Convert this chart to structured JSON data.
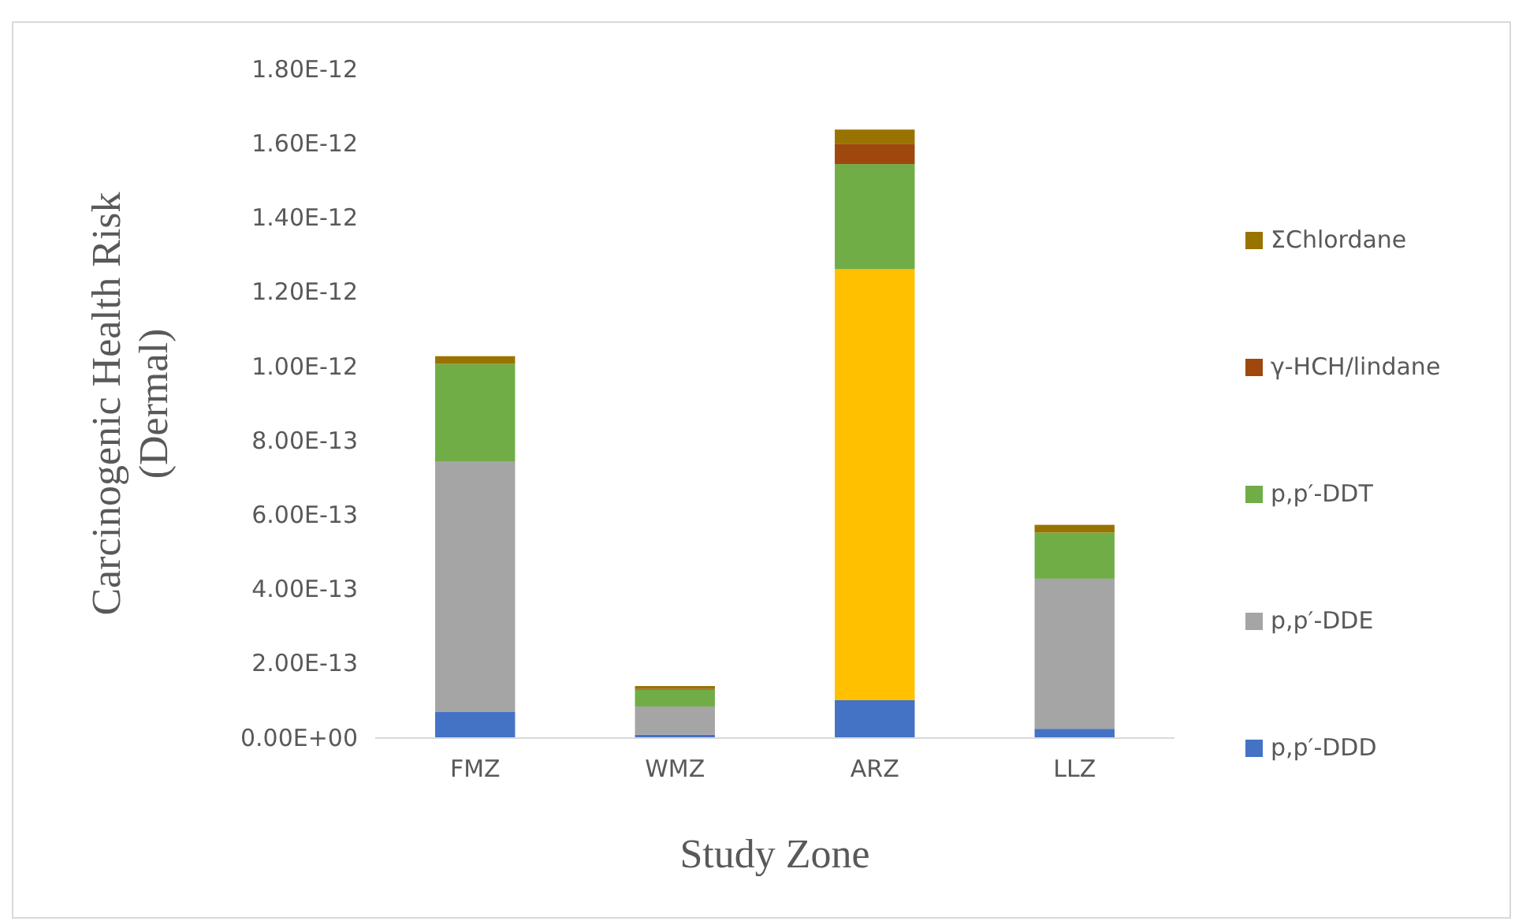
{
  "chart_data": {
    "type": "bar",
    "stacked": true,
    "xlabel": "Study Zone",
    "ylabel": "Carcinogenic Health Risk (Dermal)",
    "categories": [
      "FMZ",
      "WMZ",
      "ARZ",
      "LLZ"
    ],
    "series": [
      {
        "name": "p,p′-DDD",
        "color": "#4472c4",
        "values": [
          7e-14,
          9e-15,
          1.02e-13,
          2.5e-14
        ]
      },
      {
        "name": "p,p′-DDE",
        "color": "#a5a5a5",
        "values": [
          6.75e-13,
          7.6e-14,
          null,
          4.04e-13
        ]
      },
      {
        "color": "#ffc000",
        "values": [
          null,
          null,
          1.16e-12,
          null
        ]
      },
      {
        "name": "p,p′-DDT",
        "color": "#70ad47",
        "values": [
          2.62e-13,
          4.5e-14,
          2.83e-13,
          1.24e-13
        ]
      },
      {
        "name": "γ-HCH/lindane",
        "color": "#9e480e",
        "values": [
          null,
          3e-15,
          5.5e-14,
          null
        ]
      },
      {
        "name": "ΣChlordane",
        "color": "#997300",
        "values": [
          2.1e-14,
          7e-15,
          3.8e-14,
          2.1e-14
        ]
      }
    ],
    "ylim": [
      0,
      1.8e-12
    ],
    "yticks": [
      {
        "value": 0,
        "label": "0.00E+00"
      },
      {
        "value": 2e-13,
        "label": "2.00E-13"
      },
      {
        "value": 4e-13,
        "label": "4.00E-13"
      },
      {
        "value": 6e-13,
        "label": "6.00E-13"
      },
      {
        "value": 8e-13,
        "label": "8.00E-13"
      },
      {
        "value": 1e-12,
        "label": "1.00E-12"
      },
      {
        "value": 1.2e-12,
        "label": "1.20E-12"
      },
      {
        "value": 1.4e-12,
        "label": "1.40E-12"
      },
      {
        "value": 1.6e-12,
        "label": "1.60E-12"
      },
      {
        "value": 1.8e-12,
        "label": "1.80E-12"
      }
    ],
    "legend": "right"
  }
}
